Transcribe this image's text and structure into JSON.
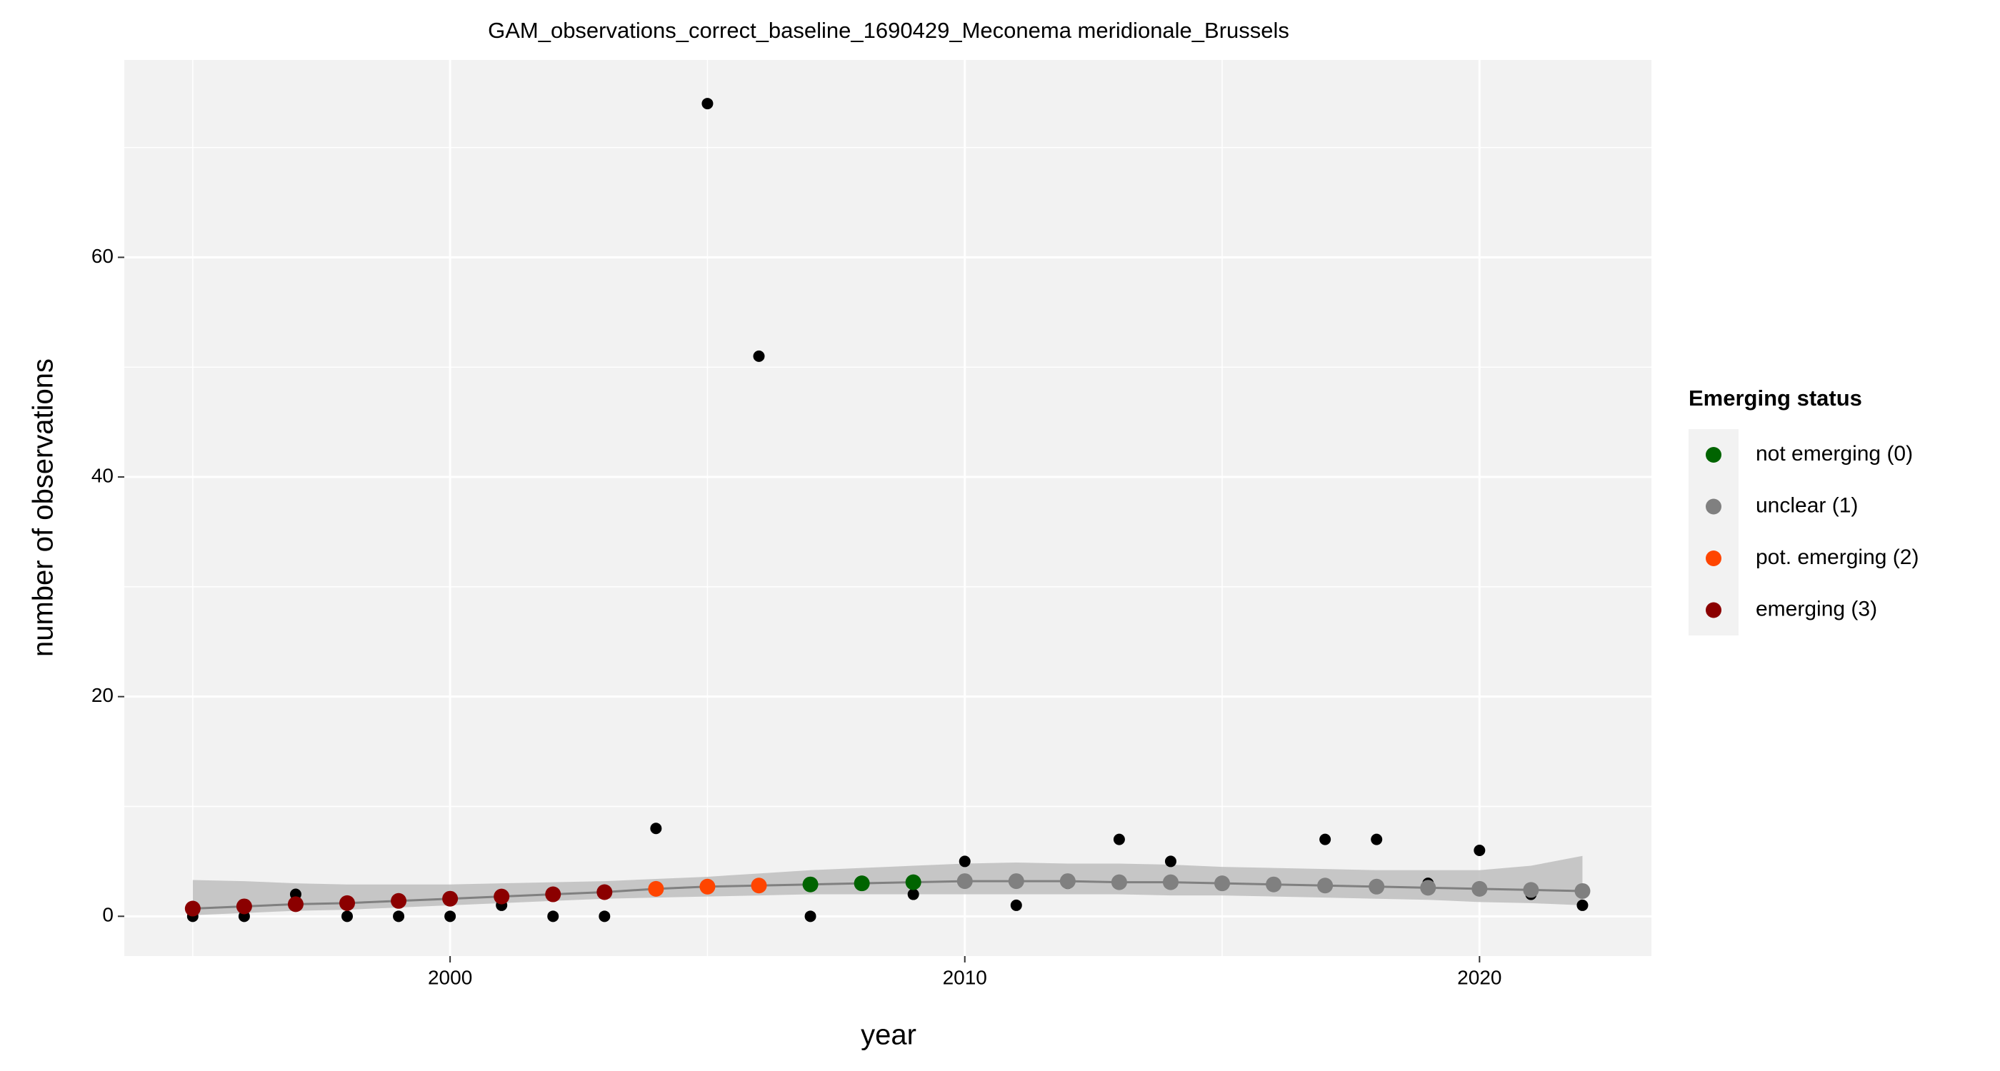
{
  "chart_data": {
    "type": "scatter",
    "title": "GAM_observations_correct_baseline_1690429_Meconema meridionale_Brussels",
    "x_label": "year",
    "y_label": "number of observations",
    "x": [
      1995,
      1996,
      1997,
      1998,
      1999,
      2000,
      2001,
      2002,
      2003,
      2004,
      2005,
      2006,
      2007,
      2008,
      2009,
      2010,
      2011,
      2012,
      2013,
      2014,
      2015,
      2016,
      2017,
      2018,
      2019,
      2020,
      2021,
      2022
    ],
    "observations": [
      0,
      0,
      2,
      0,
      0,
      0,
      1,
      0,
      0,
      8,
      74,
      51,
      0,
      3,
      2,
      5,
      1,
      3,
      7,
      5,
      3,
      3,
      7,
      7,
      3,
      6,
      2,
      1
    ],
    "observation_color": "#000000",
    "fit": [
      0.7,
      0.9,
      1.1,
      1.2,
      1.4,
      1.6,
      1.8,
      2.0,
      2.2,
      2.5,
      2.7,
      2.8,
      2.9,
      3.0,
      3.1,
      3.2,
      3.2,
      3.2,
      3.1,
      3.1,
      3.0,
      2.9,
      2.8,
      2.7,
      2.6,
      2.5,
      2.4,
      2.3
    ],
    "fit_lower": [
      0.1,
      0.3,
      0.5,
      0.6,
      0.8,
      1.0,
      1.2,
      1.4,
      1.6,
      1.7,
      1.8,
      1.9,
      2.0,
      2.0,
      2.0,
      2.0,
      2.0,
      2.0,
      2.0,
      1.9,
      1.9,
      1.8,
      1.7,
      1.6,
      1.5,
      1.3,
      1.2,
      1.0
    ],
    "fit_upper": [
      3.3,
      3.2,
      3.0,
      2.9,
      2.9,
      2.9,
      3.0,
      3.1,
      3.2,
      3.4,
      3.6,
      3.9,
      4.2,
      4.4,
      4.6,
      4.8,
      4.9,
      4.8,
      4.8,
      4.7,
      4.5,
      4.4,
      4.3,
      4.2,
      4.2,
      4.2,
      4.6,
      5.5
    ],
    "fit_line_color": "#808080",
    "band_color": "#bebebe",
    "status": [
      3,
      3,
      3,
      3,
      3,
      3,
      3,
      3,
      3,
      2,
      2,
      2,
      0,
      0,
      0,
      1,
      1,
      1,
      1,
      1,
      1,
      1,
      1,
      1,
      1,
      1,
      1,
      1
    ],
    "legend": {
      "title": "Emerging status",
      "entries": [
        {
          "label": "not emerging (0)",
          "color": "#006400"
        },
        {
          "label": "unclear (1)",
          "color": "#808080"
        },
        {
          "label": "pot. emerging (2)",
          "color": "#ff4500"
        },
        {
          "label": "emerging (3)",
          "color": "#8b0000"
        }
      ]
    },
    "xlim": [
      1993.67,
      2023.34
    ],
    "ylim": [
      -3.62,
      77.97
    ],
    "xticks": [
      2000,
      2010,
      2020
    ],
    "yticks": [
      0,
      20,
      40,
      60
    ],
    "x_minor_ticks": [
      1995,
      2005,
      2015
    ],
    "y_minor_ticks": [
      10,
      30,
      50,
      70
    ],
    "grid": true
  }
}
